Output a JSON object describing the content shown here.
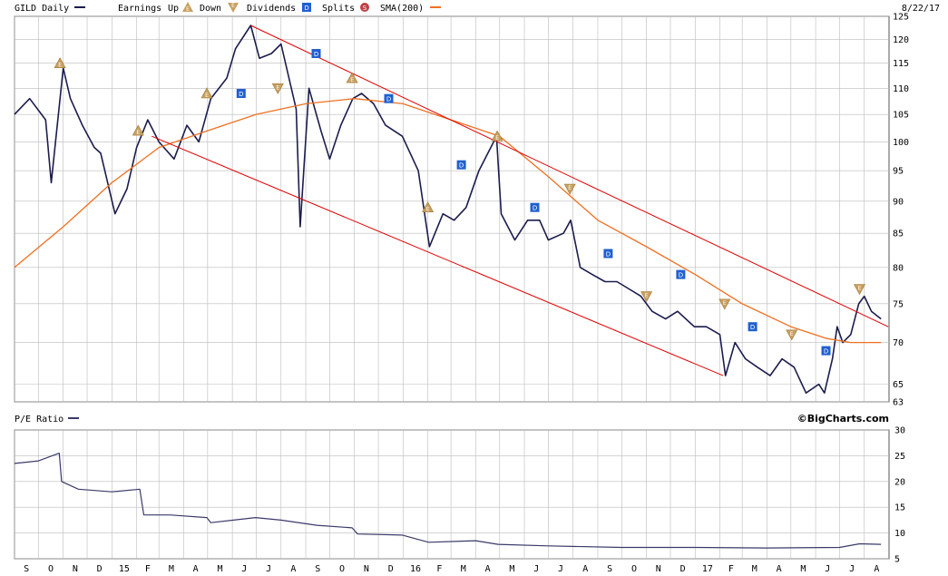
{
  "legend": {
    "title": "GILD Daily",
    "earnings_label": "Earnings",
    "up_label": "Up",
    "down_label": "Down",
    "dividends_label": "Dividends",
    "splits_label": "Splits",
    "sma_label": "SMA(200)",
    "date": "8/22/17",
    "earnings_glyph": "E",
    "dividend_glyph": "D",
    "split_glyph": "S"
  },
  "credit": "©BigCharts.com",
  "colors": {
    "price": "#1c1c4e",
    "sma": "#f07020",
    "channel": "#e00000",
    "grid": "#bbbbbb",
    "earnings": "#c8a060",
    "dividend": "#2060d0",
    "split": "#c04040",
    "pe": "#3a3a6a"
  },
  "chart_data": [
    {
      "type": "line",
      "title": "GILD Daily",
      "yscale": "log",
      "ylim": [
        63,
        125
      ],
      "yticks": [
        63,
        65,
        70,
        75,
        80,
        85,
        90,
        95,
        100,
        105,
        110,
        115,
        120,
        125
      ],
      "xlabels": [
        "S",
        "O",
        "N",
        "D",
        "15",
        "F",
        "M",
        "A",
        "M",
        "J",
        "J",
        "A",
        "S",
        "O",
        "N",
        "D",
        "16",
        "F",
        "M",
        "A",
        "M",
        "J",
        "J",
        "A",
        "S",
        "O",
        "N",
        "D",
        "17",
        "F",
        "M",
        "A",
        "M",
        "J",
        "J",
        "A"
      ],
      "grid": true,
      "series": [
        {
          "name": "GILD Daily",
          "x": [
            "2014-09-01",
            "2014-09-20",
            "2014-10-10",
            "2014-10-17",
            "2014-11-01",
            "2014-11-10",
            "2014-11-25",
            "2014-12-10",
            "2014-12-18",
            "2015-01-05",
            "2015-01-20",
            "2015-02-01",
            "2015-02-15",
            "2015-03-01",
            "2015-03-20",
            "2015-04-05",
            "2015-04-20",
            "2015-05-05",
            "2015-05-25",
            "2015-06-05",
            "2015-06-24",
            "2015-07-05",
            "2015-07-20",
            "2015-08-01",
            "2015-08-20",
            "2015-08-25",
            "2015-09-05",
            "2015-09-20",
            "2015-10-01",
            "2015-10-15",
            "2015-10-30",
            "2015-11-10",
            "2015-11-25",
            "2015-12-10",
            "2015-12-31",
            "2016-01-20",
            "2016-02-03",
            "2016-02-20",
            "2016-03-05",
            "2016-03-20",
            "2016-04-05",
            "2016-04-27",
            "2016-05-03",
            "2016-05-20",
            "2016-06-05",
            "2016-06-20",
            "2016-07-01",
            "2016-07-20",
            "2016-07-29",
            "2016-08-10",
            "2016-08-25",
            "2016-09-10",
            "2016-09-25",
            "2016-10-10",
            "2016-10-25",
            "2016-11-08",
            "2016-11-25",
            "2016-12-10",
            "2016-12-31",
            "2017-01-15",
            "2017-02-01",
            "2017-02-08",
            "2017-02-20",
            "2017-03-05",
            "2017-03-20",
            "2017-04-05",
            "2017-04-20",
            "2017-05-05",
            "2017-05-20",
            "2017-06-05",
            "2017-06-12",
            "2017-06-22",
            "2017-06-28",
            "2017-07-05",
            "2017-07-15",
            "2017-07-25",
            "2017-08-01",
            "2017-08-10",
            "2017-08-22"
          ],
          "values": [
            105,
            108,
            104,
            93,
            114,
            108,
            103,
            99,
            98,
            88,
            92,
            99,
            104,
            100,
            97,
            103,
            100,
            108,
            112,
            118,
            123,
            116,
            117,
            119,
            106,
            86,
            110,
            102,
            97,
            103,
            108,
            109,
            107,
            103,
            101,
            95,
            83,
            88,
            87,
            89,
            95,
            101,
            88,
            84,
            87,
            87,
            84,
            85,
            87,
            80,
            79,
            78,
            78,
            77,
            76,
            74,
            73,
            74,
            72,
            72,
            71,
            66,
            70,
            68,
            67,
            66,
            68,
            67,
            64,
            65,
            64,
            68,
            72,
            70,
            71,
            75,
            76,
            74,
            73
          ]
        },
        {
          "name": "SMA(200)",
          "x": [
            "2014-09-01",
            "2014-11-01",
            "2015-01-01",
            "2015-03-01",
            "2015-05-01",
            "2015-07-01",
            "2015-09-01",
            "2015-11-01",
            "2016-01-01",
            "2016-03-01",
            "2016-05-01",
            "2016-07-01",
            "2016-09-01",
            "2016-11-01",
            "2017-01-01",
            "2017-03-01",
            "2017-05-01",
            "2017-06-15",
            "2017-07-15",
            "2017-08-22"
          ],
          "values": [
            80,
            86,
            93,
            99,
            102,
            105,
            107,
            108,
            107,
            104,
            101,
            94,
            87,
            83,
            79,
            75,
            72,
            70.5,
            70,
            70
          ]
        },
        {
          "name": "upper-channel",
          "x": [
            "2015-06-24",
            "2017-08-31"
          ],
          "values": [
            123,
            72
          ]
        },
        {
          "name": "lower-channel",
          "x": [
            "2015-02-20",
            "2017-02-05"
          ],
          "values": [
            101,
            66
          ]
        }
      ],
      "earnings_markers": [
        {
          "date": "2014-10-28",
          "value": 115,
          "dir": "up"
        },
        {
          "date": "2015-02-03",
          "value": 102,
          "dir": "up"
        },
        {
          "date": "2015-04-30",
          "value": 109,
          "dir": "up"
        },
        {
          "date": "2015-07-28",
          "value": 110,
          "dir": "down"
        },
        {
          "date": "2015-10-29",
          "value": 112,
          "dir": "up"
        },
        {
          "date": "2016-02-01",
          "value": 89,
          "dir": "up"
        },
        {
          "date": "2016-04-28",
          "value": 101,
          "dir": "up"
        },
        {
          "date": "2016-07-28",
          "value": 92,
          "dir": "down"
        },
        {
          "date": "2016-11-01",
          "value": 76,
          "dir": "down"
        },
        {
          "date": "2017-02-07",
          "value": 75,
          "dir": "down"
        },
        {
          "date": "2017-05-02",
          "value": 71,
          "dir": "down"
        },
        {
          "date": "2017-07-26",
          "value": 77,
          "dir": "down"
        }
      ],
      "dividend_markers": [
        {
          "date": "2015-06-12",
          "value": 109
        },
        {
          "date": "2015-09-14",
          "value": 117
        },
        {
          "date": "2015-12-14",
          "value": 108
        },
        {
          "date": "2016-03-14",
          "value": 96
        },
        {
          "date": "2016-06-14",
          "value": 89
        },
        {
          "date": "2016-09-14",
          "value": 82
        },
        {
          "date": "2016-12-14",
          "value": 79
        },
        {
          "date": "2017-03-14",
          "value": 72
        },
        {
          "date": "2017-06-14",
          "value": 69
        }
      ]
    },
    {
      "type": "line",
      "title": "P/E Ratio",
      "ylim": [
        5,
        30
      ],
      "yticks": [
        5,
        10,
        15,
        20,
        25,
        30
      ],
      "grid": true,
      "series": [
        {
          "name": "P/E Ratio",
          "x": [
            "2014-09-01",
            "2014-10-01",
            "2014-10-27",
            "2014-10-30",
            "2014-11-20",
            "2015-01-01",
            "2015-02-05",
            "2015-02-10",
            "2015-03-15",
            "2015-04-30",
            "2015-05-05",
            "2015-06-30",
            "2015-08-01",
            "2015-09-15",
            "2015-10-29",
            "2015-11-05",
            "2015-12-31",
            "2016-02-02",
            "2016-04-01",
            "2016-04-29",
            "2016-07-01",
            "2016-10-01",
            "2017-01-01",
            "2017-04-01",
            "2017-07-01",
            "2017-07-26",
            "2017-08-22"
          ],
          "values": [
            23.5,
            24,
            25.5,
            20,
            18.5,
            18,
            18.5,
            13.5,
            13.5,
            13,
            12,
            13,
            12.5,
            11.5,
            11,
            9.8,
            9.6,
            8.2,
            8.5,
            7.8,
            7.5,
            7.2,
            7.2,
            7.1,
            7.2,
            7.9,
            7.8
          ]
        }
      ]
    }
  ]
}
